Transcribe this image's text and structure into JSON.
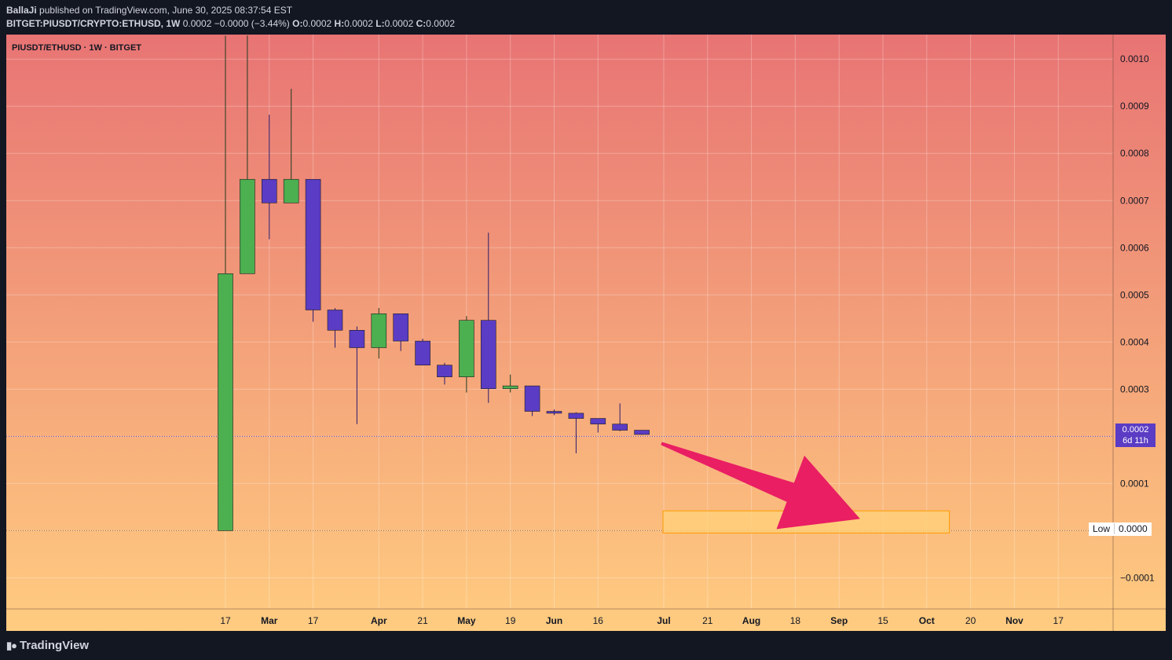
{
  "header": {
    "author": "BallaJi",
    "published_text": "published on TradingView.com, June 30, 2025 08:37:54 EST",
    "symbol_full": "BITGET:PIUSDT/CRYPTO:ETHUSD, 1W",
    "change_text": "0.0002 −0.0000 (−3.44%)",
    "o_label": "O:",
    "o_value": "0.0002",
    "h_label": "H:",
    "h_value": "0.0002",
    "l_label": "L:",
    "l_value": "0.0002",
    "c_label": "C:",
    "c_value": "0.0002"
  },
  "legend_title": "PIUSDT/ETHUSD · 1W · BITGET",
  "price_tag": {
    "value": "0.0002",
    "countdown": "6d 11h"
  },
  "low_tag": {
    "label": "Low",
    "value": "0.0000"
  },
  "footer": {
    "brand": "TradingView"
  },
  "colors": {
    "up": "#4caf50",
    "down": "#5b3cc4",
    "arrow": "#e91e63",
    "zone_fill": "#ffd27a",
    "zone_border": "#ff9800",
    "bg_top": "#e87474",
    "bg_bottom": "#ffcc80"
  },
  "chart_data": {
    "type": "candlestick",
    "interval": "1W",
    "y_ticks": [
      "0.0010",
      "0.0009",
      "0.0008",
      "0.0007",
      "0.0006",
      "0.0005",
      "0.0004",
      "0.0003",
      "0.0002",
      "0.0001",
      "0.0000",
      "−0.0001"
    ],
    "y_tick_values": [
      0.001,
      0.0009,
      0.0008,
      0.0007,
      0.0006,
      0.0005,
      0.0004,
      0.0003,
      0.0002,
      0.0001,
      0.0,
      -0.0001
    ],
    "ylim": [
      -0.000166,
      0.001052
    ],
    "x_ticks": [
      "17",
      "Mar",
      "17",
      "Apr",
      "21",
      "May",
      "19",
      "Jun",
      "16",
      "Jul",
      "21",
      "Aug",
      "18",
      "Sep",
      "15",
      "Oct",
      "20",
      "Nov",
      "17"
    ],
    "x_tick_index": [
      0,
      2,
      4,
      7,
      9,
      11,
      13,
      15,
      17,
      20,
      22,
      24,
      26,
      28,
      30,
      32,
      34,
      36,
      38
    ],
    "candles": [
      {
        "o": 0.0,
        "h": 0.00105,
        "l": 0.0,
        "c": 0.000545
      },
      {
        "o": 0.000545,
        "h": 0.00105,
        "l": 0.000545,
        "c": 0.000745
      },
      {
        "o": 0.000745,
        "h": 0.000882,
        "l": 0.000618,
        "c": 0.000695
      },
      {
        "o": 0.000695,
        "h": 0.000937,
        "l": 0.000695,
        "c": 0.000745
      },
      {
        "o": 0.000745,
        "h": 0.000745,
        "l": 0.000443,
        "c": 0.000468
      },
      {
        "o": 0.000468,
        "h": 0.000472,
        "l": 0.000388,
        "c": 0.000425
      },
      {
        "o": 0.000425,
        "h": 0.000433,
        "l": 0.000226,
        "c": 0.000388
      },
      {
        "o": 0.000388,
        "h": 0.000472,
        "l": 0.000365,
        "c": 0.00046
      },
      {
        "o": 0.00046,
        "h": 0.00046,
        "l": 0.000381,
        "c": 0.000402
      },
      {
        "o": 0.000402,
        "h": 0.000407,
        "l": 0.000351,
        "c": 0.000351
      },
      {
        "o": 0.000351,
        "h": 0.000356,
        "l": 0.00031,
        "c": 0.000326
      },
      {
        "o": 0.000326,
        "h": 0.000455,
        "l": 0.000293,
        "c": 0.000446
      },
      {
        "o": 0.000446,
        "h": 0.000632,
        "l": 0.000271,
        "c": 0.000301
      },
      {
        "o": 0.000301,
        "h": 0.000331,
        "l": 0.000293,
        "c": 0.000307
      },
      {
        "o": 0.000307,
        "h": 0.000307,
        "l": 0.000243,
        "c": 0.000253
      },
      {
        "o": 0.000253,
        "h": 0.000257,
        "l": 0.000245,
        "c": 0.000249
      },
      {
        "o": 0.000249,
        "h": 0.000251,
        "l": 0.000164,
        "c": 0.000238
      },
      {
        "o": 0.000238,
        "h": 0.000238,
        "l": 0.000208,
        "c": 0.000226
      },
      {
        "o": 0.000226,
        "h": 0.00027,
        "l": 0.000211,
        "c": 0.000213
      },
      {
        "o": 0.000213,
        "h": 0.000213,
        "l": 0.000203,
        "c": 0.000204
      }
    ],
    "last_price": 0.0002,
    "low_line": 0.0,
    "target_zone": {
      "from_index": 20,
      "to_index": 34,
      "y_low": -5e-06,
      "y_high": 4.2e-05
    },
    "arrow": {
      "from_index": 20,
      "from_y": 0.000185,
      "to_index": 29.5,
      "to_y": 2.5e-05
    }
  }
}
